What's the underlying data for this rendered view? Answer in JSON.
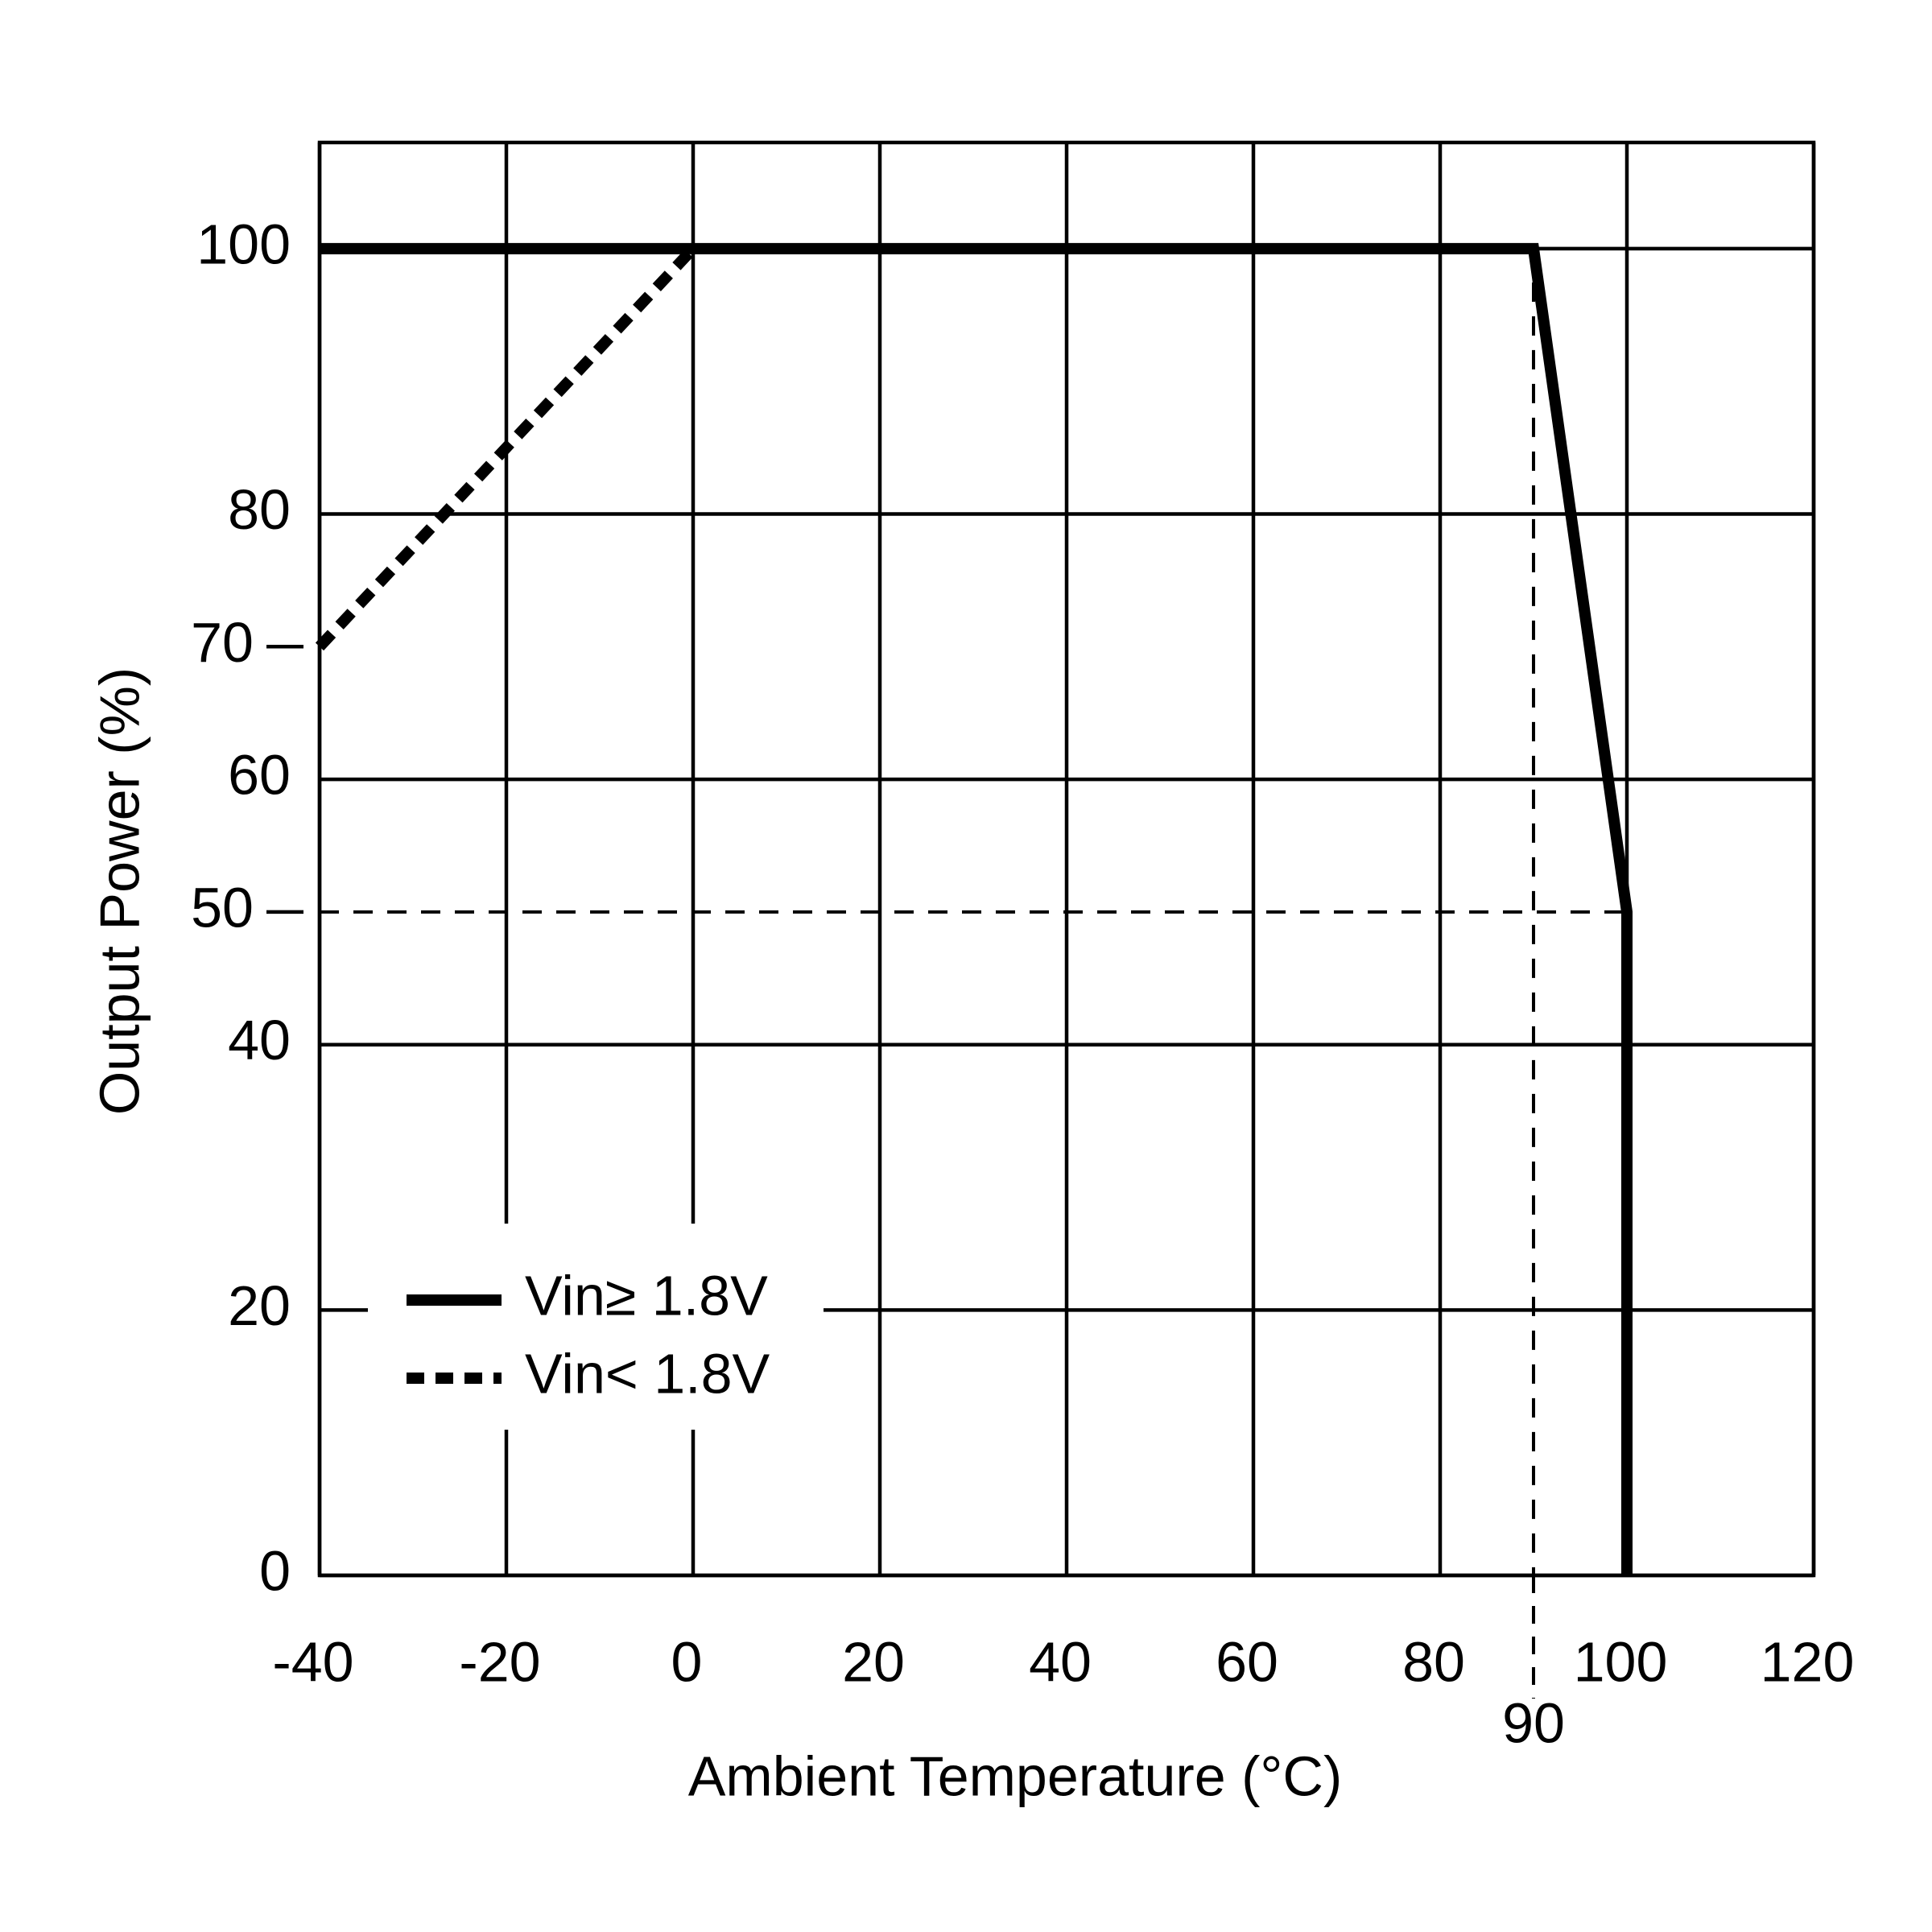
{
  "chart_data": {
    "type": "line",
    "x_label": "Ambient  Temperature  (°C)",
    "y_label": "Output Power (%)",
    "xlim": [
      -40,
      120
    ],
    "ylim": [
      0,
      108
    ],
    "xticks": [
      -40,
      -20,
      0,
      20,
      40,
      60,
      80,
      100,
      120
    ],
    "minor_xticks": [
      90
    ],
    "yticks": [
      0,
      20,
      40,
      60,
      80,
      100
    ],
    "minor_yticks": [
      50,
      70
    ],
    "grid": true,
    "legend": "lower left",
    "reference_lines": [
      {
        "x": [
          -40,
          100
        ],
        "y": [
          50,
          50
        ]
      },
      {
        "x": [
          90,
          90
        ],
        "y": [
          100,
          0
        ]
      }
    ],
    "series": [
      {
        "name": "Vin≥ 1.8V",
        "color": "#000000",
        "dash": "solid",
        "x": [
          -40,
          90,
          100,
          100
        ],
        "values": [
          100,
          100,
          50,
          0
        ]
      },
      {
        "name": "Vin< 1.8V",
        "color": "#000000",
        "dash": "dashed",
        "x": [
          -40,
          0
        ],
        "values": [
          70,
          100
        ]
      }
    ]
  }
}
